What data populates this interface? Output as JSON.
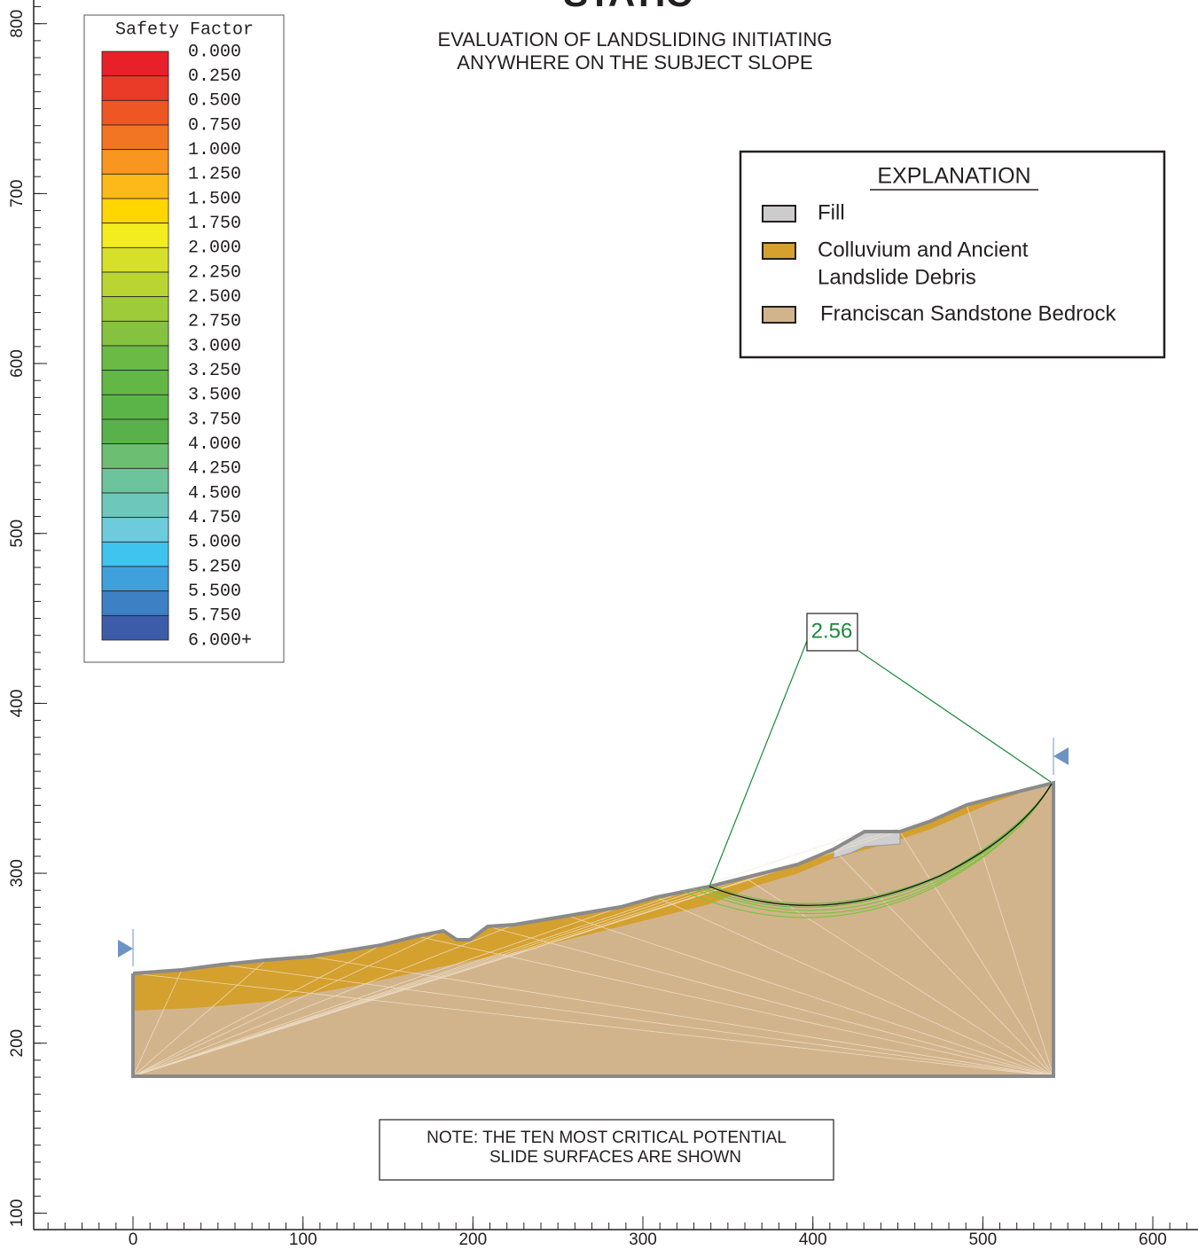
{
  "header": {
    "title": "STATIC",
    "subtitle": [
      "EVALUATION OF LANDSLIDING INITIATING",
      "ANYWHERE ON THE SUBJECT SLOPE"
    ]
  },
  "safety_legend": {
    "title": "Safety Factor",
    "labels": [
      "0.000",
      "0.250",
      "0.500",
      "0.750",
      "1.000",
      "1.250",
      "1.500",
      "1.750",
      "2.000",
      "2.250",
      "2.500",
      "2.750",
      "3.000",
      "3.250",
      "3.500",
      "3.750",
      "4.000",
      "4.250",
      "4.500",
      "4.750",
      "5.000",
      "5.250",
      "5.500",
      "5.750",
      "6.000+"
    ],
    "colors": [
      "#e8202a",
      "#ea3a28",
      "#ee5624",
      "#f27524",
      "#f8961f",
      "#fdb81a",
      "#ffd600",
      "#f3ec1e",
      "#d6df2a",
      "#bad533",
      "#9ecb3a",
      "#84c240",
      "#6aba45",
      "#62b745",
      "#5bb447",
      "#58b14a",
      "#6cbf72",
      "#6cc39c",
      "#6dc7bb",
      "#6dcbdc",
      "#3fc3ef",
      "#3fa0dc",
      "#3d80c4",
      "#3c5ca9"
    ]
  },
  "explanation": {
    "title": "EXPLANATION",
    "items": [
      {
        "label": [
          "Fill"
        ],
        "color": "#cccccc"
      },
      {
        "label": [
          "Colluvium and Ancient",
          "Landslide Debris"
        ],
        "color": "#d4a02e"
      },
      {
        "label": [
          "Franciscan Sandstone Bedrock"
        ],
        "color": "#d2b48c"
      }
    ]
  },
  "critical_surface": {
    "label": "2.56"
  },
  "note": [
    "NOTE:  THE TEN MOST CRITICAL POTENTIAL",
    "SLIDE SURFACES ARE SHOWN"
  ],
  "axes": {
    "x_ticks": [
      0,
      100,
      200,
      300,
      400,
      500,
      600
    ],
    "y_ticks": [
      100,
      200,
      300,
      400,
      500,
      600,
      700,
      800
    ]
  }
}
